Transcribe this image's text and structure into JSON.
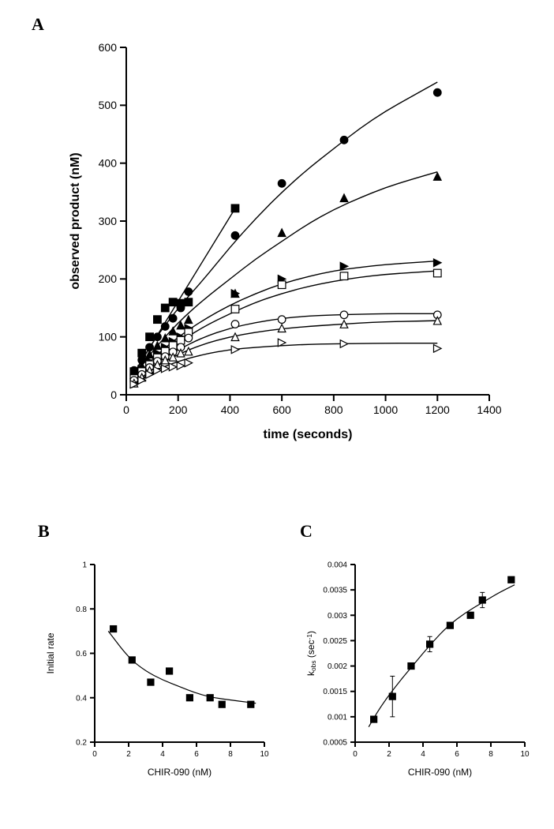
{
  "panels": {
    "A": "A",
    "B": "B",
    "C": "C"
  },
  "panelA": {
    "type": "scatter_with_lines",
    "title": "",
    "xlabel": "time (seconds)",
    "ylabel": "observed product (nM)",
    "label_fontsize": 16,
    "tick_fontsize": 14,
    "axes_color": "#000000",
    "background_color": "#ffffff",
    "tick_len": 8,
    "axis_line_width": 2,
    "series_line_width": 1.4,
    "marker_size": 6,
    "xlim": [
      0,
      1400
    ],
    "ylim": [
      0,
      600
    ],
    "xticks": [
      0,
      200,
      400,
      600,
      800,
      1000,
      1200,
      1400
    ],
    "yticks": [
      0,
      100,
      200,
      300,
      400,
      500,
      600
    ],
    "series": [
      {
        "marker": "square_filled",
        "color": "#000000",
        "fill": "#000000",
        "points_x": [
          30,
          60,
          90,
          120,
          150,
          180,
          210,
          240,
          420
        ],
        "points_y": [
          40,
          72,
          100,
          130,
          150,
          160,
          158,
          160,
          322
        ],
        "curve": [
          [
            20,
            30
          ],
          [
            420,
            322
          ]
        ]
      },
      {
        "marker": "circle_filled",
        "color": "#000000",
        "fill": "#000000",
        "points_x": [
          30,
          60,
          90,
          120,
          150,
          180,
          210,
          240,
          420,
          600,
          840,
          1200
        ],
        "points_y": [
          42,
          60,
          82,
          100,
          118,
          132,
          150,
          178,
          275,
          365,
          440,
          522
        ],
        "curve": [
          [
            20,
            30
          ],
          [
            100,
            90
          ],
          [
            200,
            150
          ],
          [
            300,
            200
          ],
          [
            400,
            255
          ],
          [
            500,
            305
          ],
          [
            600,
            350
          ],
          [
            700,
            390
          ],
          [
            800,
            425
          ],
          [
            900,
            460
          ],
          [
            1000,
            490
          ],
          [
            1100,
            515
          ],
          [
            1200,
            540
          ]
        ]
      },
      {
        "marker": "triangle_filled",
        "color": "#000000",
        "fill": "#000000",
        "points_x": [
          30,
          60,
          90,
          120,
          150,
          180,
          210,
          240,
          420,
          600,
          840,
          1200
        ],
        "points_y": [
          35,
          50,
          70,
          85,
          98,
          110,
          120,
          130,
          175,
          280,
          340,
          377
        ],
        "curve": [
          [
            20,
            25
          ],
          [
            100,
            75
          ],
          [
            200,
            125
          ],
          [
            300,
            165
          ],
          [
            400,
            200
          ],
          [
            500,
            235
          ],
          [
            600,
            265
          ],
          [
            700,
            295
          ],
          [
            800,
            320
          ],
          [
            900,
            340
          ],
          [
            1000,
            358
          ],
          [
            1100,
            372
          ],
          [
            1200,
            385
          ]
        ]
      },
      {
        "marker": "triangle_right_filled",
        "color": "#000000",
        "fill": "#000000",
        "points_x": [
          30,
          60,
          90,
          120,
          150,
          180,
          210,
          240,
          420,
          600,
          840,
          1200
        ],
        "points_y": [
          30,
          44,
          58,
          72,
          82,
          92,
          100,
          115,
          175,
          200,
          222,
          228
        ],
        "curve": [
          [
            20,
            22
          ],
          [
            100,
            62
          ],
          [
            200,
            100
          ],
          [
            300,
            130
          ],
          [
            400,
            155
          ],
          [
            500,
            175
          ],
          [
            600,
            192
          ],
          [
            700,
            204
          ],
          [
            800,
            214
          ],
          [
            900,
            220
          ],
          [
            1000,
            225
          ],
          [
            1100,
            228
          ],
          [
            1200,
            231
          ]
        ]
      },
      {
        "marker": "square_open",
        "color": "#000000",
        "fill": "none",
        "points_x": [
          30,
          60,
          90,
          120,
          150,
          180,
          210,
          240,
          420,
          600,
          840,
          1200
        ],
        "points_y": [
          28,
          40,
          52,
          64,
          75,
          85,
          94,
          108,
          148,
          190,
          205,
          210
        ],
        "curve": [
          [
            20,
            20
          ],
          [
            100,
            55
          ],
          [
            200,
            90
          ],
          [
            300,
            118
          ],
          [
            400,
            140
          ],
          [
            500,
            160
          ],
          [
            600,
            175
          ],
          [
            700,
            187
          ],
          [
            800,
            196
          ],
          [
            900,
            203
          ],
          [
            1000,
            208
          ],
          [
            1100,
            211
          ],
          [
            1200,
            214
          ]
        ]
      },
      {
        "marker": "circle_open",
        "color": "#000000",
        "fill": "none",
        "points_x": [
          30,
          60,
          90,
          120,
          150,
          180,
          210,
          240,
          420,
          600,
          840,
          1200
        ],
        "points_y": [
          25,
          35,
          47,
          58,
          66,
          74,
          82,
          98,
          122,
          130,
          138,
          138
        ],
        "curve": [
          [
            20,
            18
          ],
          [
            100,
            50
          ],
          [
            200,
            78
          ],
          [
            300,
            100
          ],
          [
            400,
            115
          ],
          [
            500,
            125
          ],
          [
            600,
            132
          ],
          [
            700,
            136
          ],
          [
            800,
            138
          ],
          [
            900,
            139
          ],
          [
            1000,
            140
          ],
          [
            1100,
            140
          ],
          [
            1200,
            140
          ]
        ]
      },
      {
        "marker": "triangle_open",
        "color": "#000000",
        "fill": "none",
        "points_x": [
          30,
          60,
          90,
          120,
          150,
          180,
          210,
          240,
          420,
          600,
          840,
          1200
        ],
        "points_y": [
          20,
          30,
          42,
          52,
          60,
          65,
          72,
          75,
          100,
          115,
          122,
          128
        ],
        "curve": [
          [
            20,
            15
          ],
          [
            100,
            45
          ],
          [
            200,
            70
          ],
          [
            300,
            88
          ],
          [
            400,
            100
          ],
          [
            500,
            108
          ],
          [
            600,
            114
          ],
          [
            700,
            118
          ],
          [
            800,
            121
          ],
          [
            900,
            124
          ],
          [
            1000,
            126
          ],
          [
            1100,
            127
          ],
          [
            1200,
            128
          ]
        ]
      },
      {
        "marker": "triangle_right_open",
        "color": "#000000",
        "fill": "none",
        "points_x": [
          30,
          60,
          90,
          120,
          150,
          180,
          210,
          240,
          420,
          600,
          840,
          1200
        ],
        "points_y": [
          18,
          25,
          35,
          42,
          45,
          48,
          50,
          55,
          78,
          90,
          88,
          80
        ],
        "curve": [
          [
            20,
            12
          ],
          [
            100,
            40
          ],
          [
            200,
            58
          ],
          [
            300,
            70
          ],
          [
            400,
            78
          ],
          [
            500,
            82
          ],
          [
            600,
            85
          ],
          [
            700,
            87
          ],
          [
            800,
            88
          ],
          [
            900,
            88.5
          ],
          [
            1000,
            89
          ],
          [
            1100,
            89
          ],
          [
            1200,
            89
          ]
        ]
      }
    ]
  },
  "panelB": {
    "type": "scatter_with_line",
    "xlabel": "CHIR-090 (nM)",
    "ylabel": "Initial rate",
    "label_fontsize": 12,
    "tick_fontsize": 10,
    "axes_color": "#000000",
    "background_color": "#ffffff",
    "tick_len": 6,
    "axis_line_width": 2,
    "series_line_width": 1.2,
    "marker_size": 5,
    "marker": "square_filled",
    "marker_color": "#000000",
    "xlim": [
      0,
      10
    ],
    "ylim": [
      0.2,
      1.0
    ],
    "xticks": [
      0,
      2,
      4,
      6,
      8,
      10
    ],
    "yticks": [
      0.2,
      0.4,
      0.6,
      0.8,
      1.0
    ],
    "points_x": [
      1.1,
      2.2,
      3.3,
      4.4,
      5.6,
      6.8,
      7.5,
      9.2
    ],
    "points_y": [
      0.71,
      0.57,
      0.47,
      0.52,
      0.4,
      0.4,
      0.37,
      0.37
    ],
    "curve": [
      [
        0.8,
        0.7
      ],
      [
        2,
        0.58
      ],
      [
        3,
        0.52
      ],
      [
        4,
        0.48
      ],
      [
        5,
        0.45
      ],
      [
        6,
        0.42
      ],
      [
        7,
        0.4
      ],
      [
        8,
        0.39
      ],
      [
        9,
        0.38
      ],
      [
        9.5,
        0.375
      ]
    ]
  },
  "panelC": {
    "type": "scatter_with_line_errorbars",
    "xlabel": "CHIR-090 (nM)",
    "ylabel": "k_obs (sec^-1)",
    "ylabel_html": "k<sub>obs</sub> (sec<sup>-1</sup>)",
    "label_fontsize": 12,
    "tick_fontsize": 10,
    "axes_color": "#000000",
    "background_color": "#ffffff",
    "tick_len": 6,
    "axis_line_width": 2,
    "series_line_width": 1.2,
    "marker_size": 5,
    "marker": "square_filled",
    "marker_color": "#000000",
    "error_cap_width": 6,
    "xlim": [
      0,
      10
    ],
    "ylim": [
      0.0005,
      0.004
    ],
    "xticks": [
      0,
      2,
      4,
      6,
      8,
      10
    ],
    "yticks": [
      0.0005,
      0.001,
      0.0015,
      0.002,
      0.0025,
      0.003,
      0.0035,
      0.004
    ],
    "points_x": [
      1.1,
      2.2,
      3.3,
      4.4,
      5.6,
      6.8,
      7.5,
      9.2
    ],
    "points_y": [
      0.00095,
      0.0014,
      0.002,
      0.00243,
      0.0028,
      0.003,
      0.0033,
      0.0037
    ],
    "error_y": [
      5e-05,
      0.0004,
      5e-05,
      0.00015,
      5e-05,
      5e-05,
      0.00015,
      5e-05
    ],
    "curve": [
      [
        0.8,
        0.0008
      ],
      [
        1.5,
        0.0012
      ],
      [
        2.5,
        0.00165
      ],
      [
        3.5,
        0.00205
      ],
      [
        4.5,
        0.00245
      ],
      [
        5.5,
        0.0028
      ],
      [
        6.5,
        0.00305
      ],
      [
        7.5,
        0.00325
      ],
      [
        8.5,
        0.00345
      ],
      [
        9.4,
        0.0036
      ]
    ]
  }
}
